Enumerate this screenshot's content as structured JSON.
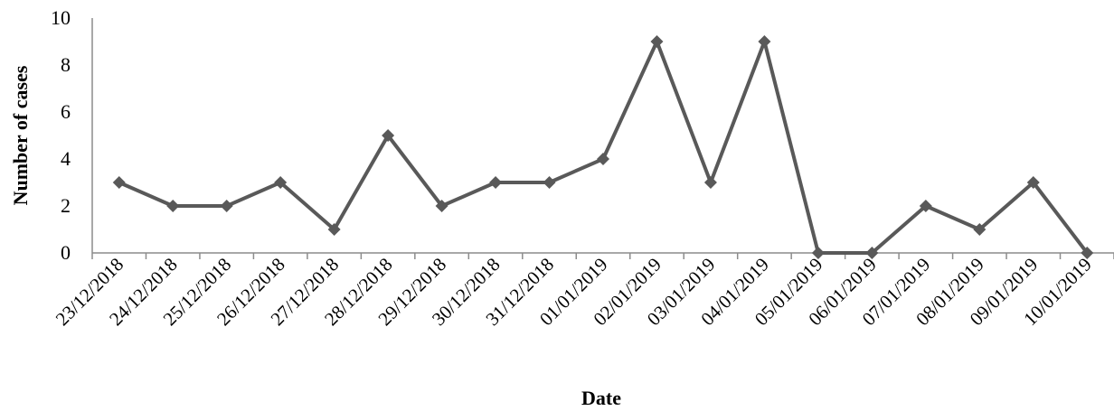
{
  "chart_data": {
    "type": "line",
    "xlabel": "Date",
    "ylabel": "Number of cases",
    "ylim": [
      0,
      10
    ],
    "yticks": [
      "0",
      "2",
      "4",
      "6",
      "8",
      "10"
    ],
    "grid": false,
    "categories": [
      "23/12/2018",
      "24/12/2018",
      "25/12/2018",
      "26/12/2018",
      "27/12/2018",
      "28/12/2018",
      "29/12/2018",
      "30/12/2018",
      "31/12/2018",
      "01/01/2019",
      "02/01/2019",
      "03/01/2019",
      "04/01/2019",
      "05/01/2019",
      "06/01/2019",
      "07/01/2019",
      "08/01/2019",
      "09/01/2019",
      "10/01/2019"
    ],
    "series": [
      {
        "values": [
          3,
          2,
          2,
          3,
          1,
          5,
          2,
          3,
          3,
          4,
          9,
          3,
          9,
          0,
          0,
          2,
          1,
          3,
          0
        ],
        "color": "#595959",
        "marker": "diamond"
      }
    ]
  }
}
